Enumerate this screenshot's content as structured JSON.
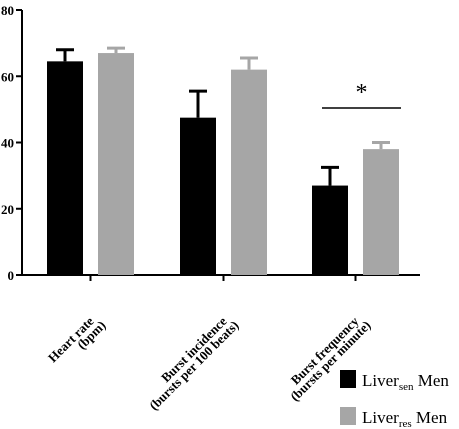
{
  "chart_data": {
    "type": "bar",
    "categories": [
      {
        "line1": "Heart rate",
        "line2": "(bpm)"
      },
      {
        "line1": "Burst incidence",
        "line2": "(bursts per 100 beats)"
      },
      {
        "line1": "Burst frequency",
        "line2": "(bursts per minute)"
      }
    ],
    "series": [
      {
        "name_main": "Liver",
        "name_sub": "sen",
        "name_suffix": " Men",
        "color": "#000000",
        "values": [
          64.5,
          47.5,
          27
        ],
        "errors": [
          3.5,
          8,
          5.5
        ]
      },
      {
        "name_main": "Liver",
        "name_sub": "res",
        "name_suffix": " Men",
        "color": "#a6a6a6",
        "values": [
          67,
          62,
          38
        ],
        "errors": [
          1.5,
          3.5,
          2
        ]
      }
    ],
    "yticks": [
      "0",
      "20",
      "40",
      "60",
      "80"
    ],
    "ylim": [
      0,
      80
    ],
    "xlabel": "",
    "ylabel": "",
    "legend_position": "bottom-right",
    "significance": {
      "category_index": 2,
      "label": "*"
    }
  }
}
